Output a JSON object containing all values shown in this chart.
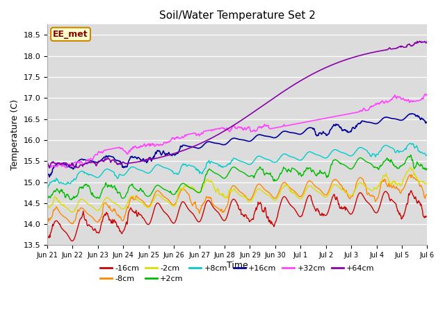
{
  "title": "Soil/Water Temperature Set 2",
  "xlabel": "Time",
  "ylabel": "Temperature (C)",
  "ylim": [
    13.5,
    18.75
  ],
  "xlim": [
    0,
    15
  ],
  "bg_color": "#dcdcdc",
  "fig_color": "#ffffff",
  "series_colors": [
    "#cc0000",
    "#ff8800",
    "#dddd00",
    "#00bb00",
    "#00cccc",
    "#000099",
    "#ff44ff",
    "#8800aa"
  ],
  "series_labels": [
    "-16cm",
    "-8cm",
    "-2cm",
    "+2cm",
    "+8cm",
    "+16cm",
    "+32cm",
    "+64cm"
  ],
  "annotation_text": "EE_met",
  "annotation_bg": "#ffffcc",
  "annotation_border": "#cc8800",
  "annotation_text_color": "#880000",
  "xtick_labels": [
    "Jun 21",
    "Jun 22",
    "Jun 23",
    "Jun 24",
    "Jun 25",
    "Jun 26",
    "Jun 27",
    "Jun 28",
    "Jun 29",
    "Jun 30",
    "Jul 1",
    "Jul 2",
    "Jul 3",
    "Jul 4",
    "Jul 5",
    "Jul 6"
  ],
  "xtick_positions": [
    0,
    1,
    2,
    3,
    4,
    5,
    6,
    7,
    8,
    9,
    10,
    11,
    12,
    13,
    14,
    15
  ],
  "ytick_labels": [
    "13.5",
    "14.0",
    "14.5",
    "15.0",
    "15.5",
    "16.0",
    "16.5",
    "17.0",
    "17.5",
    "18.0",
    "18.5"
  ],
  "ytick_positions": [
    13.5,
    14.0,
    14.5,
    15.0,
    15.5,
    16.0,
    16.5,
    17.0,
    17.5,
    18.0,
    18.5
  ]
}
